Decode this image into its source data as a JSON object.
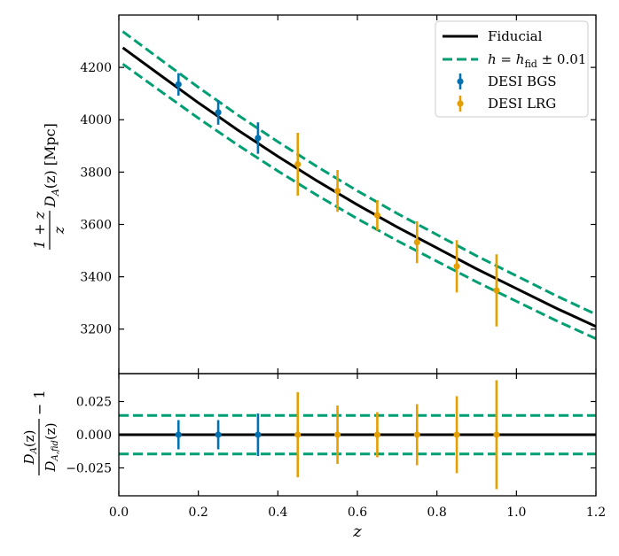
{
  "chart_data": {
    "type": "scatter",
    "figure": "DESI distance constraints",
    "xlabel": "z",
    "xlim": [
      0.0,
      1.2
    ],
    "xticks": [
      "0.0",
      "0.2",
      "0.4",
      "0.6",
      "0.8",
      "1.0",
      "1.2"
    ],
    "colors": {
      "fiducial": "#000000",
      "band": "#009e73",
      "bgs": "#0072b2",
      "lrg": "#e69f00"
    },
    "top": {
      "ylabel_numer": "1 + z",
      "ylabel_denom": "z",
      "ylabel_rest": "D",
      "ylabel_sub": "A",
      "ylabel_arg": "(z)",
      "ylabel_unit": "[Mpc]",
      "ylim": [
        3030,
        4400
      ],
      "yticks": [
        "3200",
        "3400",
        "3600",
        "3800",
        "4000",
        "4200"
      ],
      "fiducial": {
        "name": "Fiducial",
        "x": [
          0.01,
          0.1,
          0.2,
          0.3,
          0.4,
          0.5,
          0.6,
          0.7,
          0.8,
          0.9,
          1.0,
          1.1,
          1.2
        ],
        "y": [
          4275,
          4175,
          4065,
          3960,
          3860,
          3765,
          3675,
          3590,
          3510,
          3430,
          3355,
          3280,
          3210
        ]
      },
      "band_half_width_frac": 0.0145,
      "bgs": {
        "name": "DESI BGS",
        "x": [
          0.15,
          0.25,
          0.35
        ],
        "y": [
          4135,
          4028,
          3930
        ],
        "err": [
          43,
          47,
          60
        ]
      },
      "lrg": {
        "name": "DESI LRG",
        "x": [
          0.45,
          0.55,
          0.65,
          0.75,
          0.85,
          0.95
        ],
        "y": [
          3830,
          3728,
          3635,
          3532,
          3440,
          3348
        ],
        "err": [
          120,
          80,
          58,
          80,
          100,
          138
        ]
      }
    },
    "bottom": {
      "ylabel_numer": "D",
      "ylabel_numer_sub": "A",
      "ylabel_numer_arg": "(z)",
      "ylabel_denom": "D",
      "ylabel_denom_sub": "A,fid",
      "ylabel_denom_arg": "(z)",
      "ylabel_minus": "− 1",
      "ylim": [
        -0.046,
        0.046
      ],
      "yticks": [
        "0.025",
        "0.000",
        "−0.025"
      ],
      "ytick_values": [
        0.025,
        0.0,
        -0.025
      ],
      "band_level": 0.0145,
      "bgs": {
        "x": [
          0.15,
          0.25,
          0.35
        ],
        "err": [
          0.011,
          0.011,
          0.016
        ]
      },
      "lrg": {
        "x": [
          0.45,
          0.55,
          0.65,
          0.75,
          0.85,
          0.95
        ],
        "err": [
          0.032,
          0.022,
          0.017,
          0.023,
          0.029,
          0.041
        ]
      }
    },
    "legend": {
      "position": "top-right",
      "entries": [
        {
          "label": "Fiducial",
          "style": "solid"
        },
        {
          "label_pre": "h = h",
          "label_sub": "fid",
          "label_post": " ± 0.01",
          "style": "dashed"
        },
        {
          "label": "DESI BGS",
          "style": "errorbar-bgs"
        },
        {
          "label": "DESI LRG",
          "style": "errorbar-lrg"
        }
      ]
    }
  }
}
